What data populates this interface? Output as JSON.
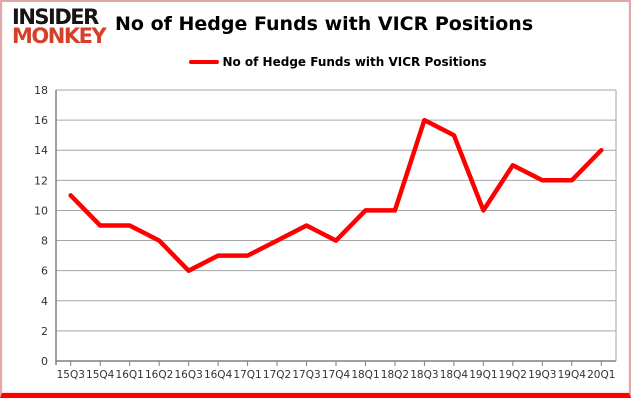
{
  "logo": {
    "line1": "INSIDER",
    "line2": "MONKEY"
  },
  "header": {
    "title": "No of Hedge Funds with VICR Positions"
  },
  "legend": {
    "label": "No of Hedge Funds with VICR Positions"
  },
  "chart_data": {
    "type": "line",
    "title": "No of Hedge Funds with VICR Positions",
    "categories": [
      "15Q3",
      "15Q4",
      "16Q1",
      "16Q2",
      "16Q3",
      "16Q4",
      "17Q1",
      "17Q2",
      "17Q3",
      "17Q4",
      "18Q1",
      "18Q2",
      "18Q3",
      "18Q4",
      "19Q1",
      "19Q2",
      "19Q3",
      "19Q4",
      "20Q1"
    ],
    "series": [
      {
        "name": "No of Hedge Funds with VICR Positions",
        "values": [
          11,
          9,
          9,
          8,
          6,
          7,
          7,
          8,
          9,
          8,
          10,
          10,
          16,
          15,
          10,
          13,
          12,
          12,
          14
        ]
      }
    ],
    "xlabel": "",
    "ylabel": "",
    "ylim": [
      0,
      18
    ],
    "ytick_step": 2,
    "grid": true,
    "legend_position": "top"
  },
  "colors": {
    "series_line": "#ff0000",
    "gridline": "#a6a6a6",
    "axis": "#808080",
    "tick_label": "#333333",
    "logo_insider": "#151515",
    "logo_monkey": "#d5402b",
    "frame_border": "#dcaaaa",
    "frame_bottom": "#ff0000"
  }
}
